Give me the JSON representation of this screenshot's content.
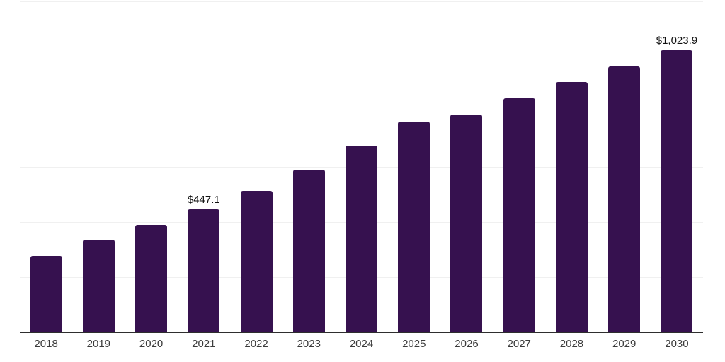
{
  "chart_data": {
    "type": "bar",
    "categories": [
      "2018",
      "2019",
      "2020",
      "2021",
      "2022",
      "2023",
      "2024",
      "2025",
      "2026",
      "2027",
      "2028",
      "2029",
      "2030"
    ],
    "values": [
      278,
      336,
      390,
      447.1,
      514,
      590,
      676,
      765,
      790,
      849,
      907,
      965,
      1023.9
    ],
    "bar_labels": [
      null,
      null,
      null,
      "$447.1",
      null,
      null,
      null,
      null,
      null,
      null,
      null,
      null,
      "$1,023.9"
    ],
    "ylim": [
      0,
      1200
    ],
    "grid": {
      "horizontal": true,
      "interval": 200
    },
    "legend": null,
    "bar_color": "#36114f"
  },
  "style": {
    "background": "#ffffff",
    "bar_fill": "#36114f",
    "axis_line": "#2e2e2e",
    "gridline": "#f0f0f0",
    "tick_label": "#3c3c3c",
    "value_label": "#111111"
  }
}
